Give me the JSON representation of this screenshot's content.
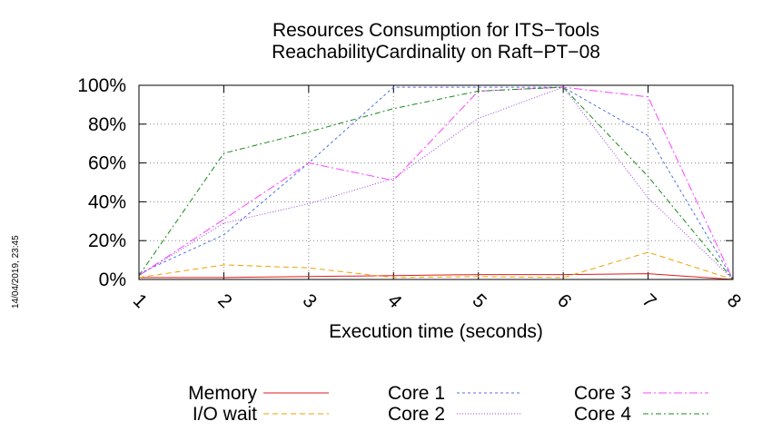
{
  "chart_data": {
    "type": "line",
    "title": "Resources Consumption for ITS−Tools",
    "subtitle": "ReachabilityCardinality on Raft−PT−08",
    "xlabel": "Execution time (seconds)",
    "ylabel": "",
    "x": [
      1,
      2,
      3,
      4,
      5,
      6,
      7,
      8
    ],
    "xlim": [
      1,
      8
    ],
    "ylim": [
      0,
      100
    ],
    "x_ticks": [
      "1",
      "2",
      "3",
      "4",
      "5",
      "6",
      "7",
      "8"
    ],
    "y_ticks": [
      "0%",
      "20%",
      "40%",
      "60%",
      "80%",
      "100%"
    ],
    "grid": true,
    "legend_position": "bottom",
    "series": [
      {
        "name": "Memory",
        "color": "#e41a1c",
        "dash": "",
        "values": [
          1,
          1,
          1.5,
          2,
          2.5,
          2.5,
          3,
          0
        ]
      },
      {
        "name": "I/O wait",
        "color": "#f0a000",
        "dash": "6,4",
        "values": [
          1,
          7.5,
          6,
          1,
          1.5,
          1,
          14,
          0
        ]
      },
      {
        "name": "Core 1",
        "color": "#4f6fe0",
        "dash": "3,3",
        "values": [
          3,
          23,
          60,
          99,
          99,
          99,
          74,
          0
        ]
      },
      {
        "name": "Core 2",
        "color": "#9b3fe0",
        "dash": "1,2",
        "values": [
          2,
          29,
          39,
          52,
          83,
          99,
          42,
          0
        ]
      },
      {
        "name": "Core 3",
        "color": "#ff40ff",
        "dash": "9,3,2,3",
        "values": [
          2,
          31,
          60,
          51,
          97,
          99,
          94,
          0
        ]
      },
      {
        "name": "Core 4",
        "color": "#1a8a1a",
        "dash": "6,3,2,3",
        "values": [
          2,
          65,
          76,
          88,
          97,
          99,
          53,
          0
        ]
      }
    ]
  },
  "timestamp": "14/04/2019, 23:45"
}
